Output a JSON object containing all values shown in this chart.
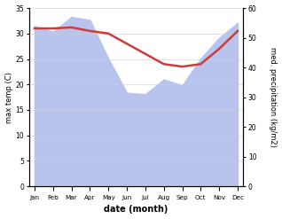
{
  "months": [
    "Jan",
    "Feb",
    "Mar",
    "Apr",
    "May",
    "Jun",
    "Jul",
    "Aug",
    "Sep",
    "Oct",
    "Nov",
    "Dec"
  ],
  "temperature": [
    31.0,
    31.0,
    31.2,
    30.5,
    30.0,
    28.0,
    26.0,
    24.0,
    23.5,
    24.0,
    27.0,
    30.5
  ],
  "precipitation": [
    54.0,
    52.0,
    57.0,
    56.0,
    43.0,
    31.5,
    31.0,
    36.0,
    34.0,
    43.0,
    50.0,
    55.0
  ],
  "temp_color": "#cd3b3b",
  "precip_fill_color": "#b8c4ee",
  "temp_ylim": [
    0,
    35
  ],
  "precip_ylim": [
    0,
    60
  ],
  "temp_yticks": [
    0,
    5,
    10,
    15,
    20,
    25,
    30,
    35
  ],
  "precip_yticks": [
    0,
    10,
    20,
    30,
    40,
    50,
    60
  ],
  "xlabel": "date (month)",
  "ylabel_left": "max temp (C)",
  "ylabel_right": "med. precipitation (kg/m2)",
  "background_color": "#ffffff"
}
